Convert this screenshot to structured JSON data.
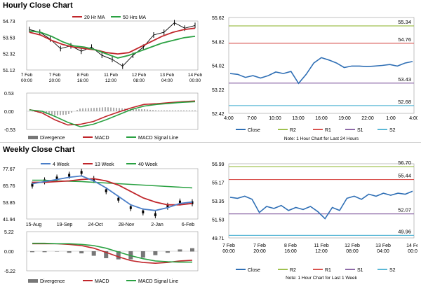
{
  "titles": {
    "hourly": "Hourly Close Chart",
    "weekly": "Weekly Close Chart"
  },
  "chart_data": [
    {
      "id": "hourly-main",
      "type": "line",
      "ylim": [
        51.12,
        54.73
      ],
      "y_ticks": [
        "54.73",
        "53.53",
        "52.32",
        "51.12"
      ],
      "x_ticks": [
        "7 Feb\n00:00",
        "7 Feb\n20:00",
        "8 Feb\n16:00",
        "11 Feb\n12:00",
        "12 Feb\n08:00",
        "13 Feb\n04:00",
        "14 Feb\n00:00"
      ],
      "legend": [
        "20 Hr MA",
        "50 Hrs MA"
      ],
      "colors": {
        "price": "#000000",
        "ma20": "#c0262b",
        "ma50": "#2aa142"
      },
      "series": [
        {
          "name": "20 Hr MA",
          "values": [
            53.9,
            53.7,
            53.3,
            53.0,
            52.8,
            52.7,
            52.6,
            52.4,
            52.3,
            52.4,
            52.8,
            53.2,
            53.6,
            53.9,
            54.1,
            54.2
          ]
        },
        {
          "name": "50 Hrs MA",
          "values": [
            54.0,
            53.9,
            53.6,
            53.2,
            52.9,
            52.8,
            52.6,
            52.3,
            52.0,
            52.2,
            52.5,
            52.8,
            53.1,
            53.3,
            53.5,
            53.6
          ]
        }
      ],
      "price": [
        54.1,
        53.9,
        53.4,
        52.7,
        52.9,
        52.5,
        52.8,
        52.2,
        51.9,
        51.4,
        52.2,
        52.8,
        53.7,
        53.9,
        54.6,
        54.2,
        54.4
      ]
    },
    {
      "id": "hourly-macd",
      "type": "line",
      "ylim": [
        -0.53,
        0.53
      ],
      "y_ticks": [
        "0.53",
        "0.00",
        "-0.53"
      ],
      "legend": [
        "Divergence",
        "MACD",
        "MACD Signal Line"
      ],
      "colors": {
        "divergence": "#777777",
        "macd": "#c0262b",
        "signal": "#2aa142"
      },
      "series": [
        {
          "name": "MACD",
          "values": [
            0.05,
            -0.05,
            -0.25,
            -0.4,
            -0.38,
            -0.3,
            -0.15,
            -0.02,
            0.1,
            0.2,
            0.22,
            0.25,
            0.28,
            0.3
          ]
        },
        {
          "name": "MACD Signal Line",
          "values": [
            0.04,
            0.0,
            -0.15,
            -0.32,
            -0.45,
            -0.38,
            -0.25,
            -0.1,
            0.05,
            0.15,
            0.2,
            0.23,
            0.26,
            0.28
          ]
        }
      ]
    },
    {
      "id": "hourly-24h",
      "type": "line",
      "ylim": [
        52.42,
        55.62
      ],
      "y_ticks": [
        "55.62",
        "54.82",
        "54.02",
        "53.22",
        "52.42"
      ],
      "x_ticks": [
        "4:00",
        "7:00",
        "10:00",
        "13:00",
        "16:00",
        "19:00",
        "22:00",
        "1:00",
        "4:00"
      ],
      "levels": [
        {
          "name": "R2",
          "value": 55.34,
          "label": "55.34",
          "color": "#9fc14f"
        },
        {
          "name": "R1",
          "value": 54.76,
          "label": "54.76",
          "color": "#d9534f"
        },
        {
          "name": "S1",
          "value": 53.43,
          "label": "53.43",
          "color": "#8e6aa8"
        },
        {
          "name": "S2",
          "value": 52.68,
          "label": "52.68",
          "color": "#5bb8d6"
        }
      ],
      "legend": [
        "Close",
        "R2",
        "R1",
        "S1",
        "S2"
      ],
      "note": "Note: 1 Hour Chart for Last 24 Hours",
      "series": [
        {
          "name": "Close",
          "values": [
            53.75,
            53.72,
            53.62,
            53.68,
            53.6,
            53.68,
            53.8,
            53.75,
            53.82,
            53.42,
            53.72,
            54.1,
            54.28,
            54.2,
            54.1,
            53.95,
            54.0,
            54.0,
            53.98,
            54.0,
            54.02,
            54.05,
            54.0,
            54.1,
            54.15
          ]
        }
      ]
    },
    {
      "id": "weekly-main",
      "type": "line",
      "ylim": [
        41.94,
        77.67
      ],
      "y_ticks": [
        "77.67",
        "65.76",
        "53.85",
        "41.94"
      ],
      "x_ticks": [
        "15-Aug",
        "19-Sep",
        "24-Oct",
        "28-Nov",
        "2-Jan",
        "6-Feb"
      ],
      "legend": [
        "4 Week",
        "13 Week",
        "40 Week"
      ],
      "colors": {
        "ma4": "#4a7ec8",
        "ma13": "#c0262b",
        "ma40": "#2aa142"
      },
      "series": [
        {
          "name": "4 Week",
          "values": [
            67.0,
            68.5,
            70.0,
            71.5,
            72.5,
            69.0,
            64.0,
            58.0,
            52.0,
            49.0,
            48.0,
            50.0,
            53.0,
            54.0
          ]
        },
        {
          "name": "13 Week",
          "values": [
            68.0,
            68.0,
            68.5,
            69.0,
            70.0,
            70.5,
            69.0,
            66.0,
            61.5,
            57.0,
            54.0,
            52.0,
            52.0,
            53.0
          ]
        },
        {
          "name": "40 Week",
          "values": [
            69.5,
            69.5,
            69.0,
            68.8,
            68.5,
            68.0,
            67.5,
            67.0,
            66.5,
            66.0,
            65.5,
            65.0,
            64.5,
            64.0
          ]
        }
      ],
      "price": [
        66.0,
        69.0,
        71.0,
        73.0,
        75.0,
        70.0,
        62.0,
        56.0,
        50.0,
        47.0,
        45.0,
        51.0,
        54.0,
        53.5
      ]
    },
    {
      "id": "weekly-macd",
      "type": "line",
      "ylim": [
        -5.22,
        5.22
      ],
      "y_ticks": [
        "5.22",
        "0.00",
        "-5.22"
      ],
      "legend": [
        "Divergence",
        "MACD",
        "MACD Signal Line"
      ],
      "colors": {
        "divergence": "#777777",
        "macd": "#c0262b",
        "signal": "#2aa142"
      },
      "series": [
        {
          "name": "MACD",
          "values": [
            2.0,
            2.0,
            2.0,
            1.8,
            1.5,
            0.8,
            -0.3,
            -1.5,
            -2.5,
            -3.0,
            -3.2,
            -3.0,
            -2.6,
            -2.4
          ]
        },
        {
          "name": "MACD Signal Line",
          "values": [
            2.1,
            2.1,
            2.0,
            2.0,
            1.8,
            1.5,
            0.8,
            -0.2,
            -1.2,
            -2.0,
            -2.6,
            -2.8,
            -2.9,
            -2.9
          ]
        }
      ]
    },
    {
      "id": "weekly-hourly",
      "type": "line",
      "ylim": [
        49.71,
        56.99
      ],
      "y_ticks": [
        "56.99",
        "55.17",
        "53.35",
        "51.53",
        "49.71"
      ],
      "x_ticks": [
        "7 Feb\n00:00",
        "7 Feb\n20:00",
        "8 Feb\n16:00",
        "11 Feb\n12:00",
        "12 Feb\n08:00",
        "13 Feb\n04:00",
        "14 Feb\n00:00"
      ],
      "levels": [
        {
          "name": "R2",
          "value": 56.7,
          "label": "56.70",
          "color": "#9fc14f"
        },
        {
          "name": "R1",
          "value": 55.44,
          "label": "55.44",
          "color": "#d9534f"
        },
        {
          "name": "S1",
          "value": 52.07,
          "label": "52.07",
          "color": "#8e6aa8"
        },
        {
          "name": "S2",
          "value": 49.96,
          "label": "49.96",
          "color": "#5bb8d6"
        }
      ],
      "legend": [
        "Close",
        "R2",
        "R1",
        "S1",
        "S2"
      ],
      "note": "Note: 1 Hour Chart for Last 1 Week",
      "series": [
        {
          "name": "Close",
          "values": [
            53.7,
            53.6,
            53.8,
            53.5,
            52.2,
            52.8,
            52.6,
            52.9,
            52.4,
            52.7,
            52.5,
            52.8,
            52.3,
            51.6,
            52.7,
            52.4,
            53.6,
            53.8,
            53.5,
            54.0,
            53.8,
            54.1,
            53.9,
            54.1,
            54.0,
            54.3
          ]
        }
      ]
    }
  ]
}
